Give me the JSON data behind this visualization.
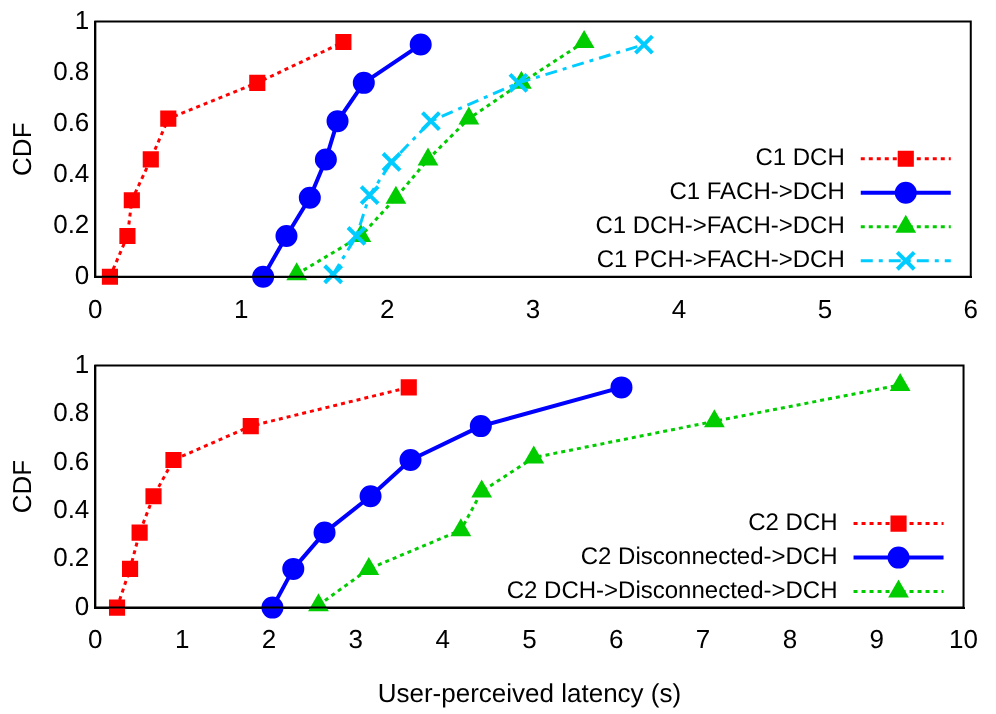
{
  "chart_data": [
    {
      "type": "line",
      "ylabel": "CDF",
      "xlim": [
        0,
        6
      ],
      "xticks": [
        0,
        1,
        2,
        3,
        4,
        5,
        6
      ],
      "ylim": [
        0,
        1
      ],
      "yticks": [
        0,
        0.2,
        0.4,
        0.6,
        0.8,
        1
      ],
      "grid": false,
      "legend": "bottom right",
      "series": [
        {
          "name": "C1 DCH",
          "color": "#ff0000",
          "marker": "square",
          "line_style": "dotted",
          "x": [
            0.1,
            0.22,
            0.25,
            0.38,
            0.5,
            1.11,
            1.7
          ],
          "values": [
            0,
            0.16,
            0.3,
            0.46,
            0.62,
            0.76,
            0.92
          ]
        },
        {
          "name": "C1 FACH->DCH",
          "color": "#0000ff",
          "marker": "circle",
          "line_style": "solid",
          "x": [
            1.15,
            1.31,
            1.47,
            1.58,
            1.66,
            1.84,
            2.23
          ],
          "values": [
            0,
            0.16,
            0.31,
            0.46,
            0.61,
            0.76,
            0.91
          ]
        },
        {
          "name": "C1 DCH->FACH->DCH",
          "color": "#00cc00",
          "marker": "triangle",
          "line_style": "dotted",
          "x": [
            1.38,
            1.82,
            2.06,
            2.28,
            2.56,
            2.92,
            3.35
          ],
          "values": [
            0.01,
            0.16,
            0.31,
            0.46,
            0.62,
            0.76,
            0.92
          ]
        },
        {
          "name": "C1 PCH->FACH->DCH",
          "color": "#00ccff",
          "marker": "cross",
          "line_style": "dashed",
          "x": [
            1.63,
            1.79,
            1.88,
            2.03,
            2.3,
            2.9,
            3.76
          ],
          "values": [
            0.01,
            0.16,
            0.32,
            0.45,
            0.61,
            0.76,
            0.91
          ]
        }
      ]
    },
    {
      "type": "line",
      "ylabel": "CDF",
      "xlabel": "User-perceived latency (s)",
      "xlim": [
        0,
        10
      ],
      "xticks": [
        0,
        1,
        2,
        3,
        4,
        5,
        6,
        7,
        8,
        9,
        10
      ],
      "ylim": [
        0,
        1
      ],
      "yticks": [
        0,
        0.2,
        0.4,
        0.6,
        0.8,
        1
      ],
      "grid": false,
      "legend": "bottom right",
      "series": [
        {
          "name": "C2 DCH",
          "color": "#ff0000",
          "marker": "square",
          "line_style": "dotted",
          "x": [
            0.25,
            0.4,
            0.51,
            0.67,
            0.9,
            1.79,
            3.61
          ],
          "values": [
            0,
            0.16,
            0.31,
            0.46,
            0.61,
            0.75,
            0.91
          ]
        },
        {
          "name": "C2 Disconnected->DCH",
          "color": "#0000ff",
          "marker": "circle",
          "line_style": "solid",
          "x": [
            2.04,
            2.28,
            2.64,
            3.17,
            3.63,
            4.44,
            6.06
          ],
          "values": [
            0,
            0.16,
            0.31,
            0.46,
            0.61,
            0.75,
            0.91
          ]
        },
        {
          "name": "C2 DCH->Disconnected->DCH",
          "color": "#00cc00",
          "marker": "triangle",
          "line_style": "dotted",
          "x": [
            2.57,
            3.15,
            4.21,
            4.45,
            5.05,
            7.13,
            9.27
          ],
          "values": [
            0.01,
            0.16,
            0.32,
            0.48,
            0.62,
            0.77,
            0.92
          ]
        }
      ]
    }
  ]
}
